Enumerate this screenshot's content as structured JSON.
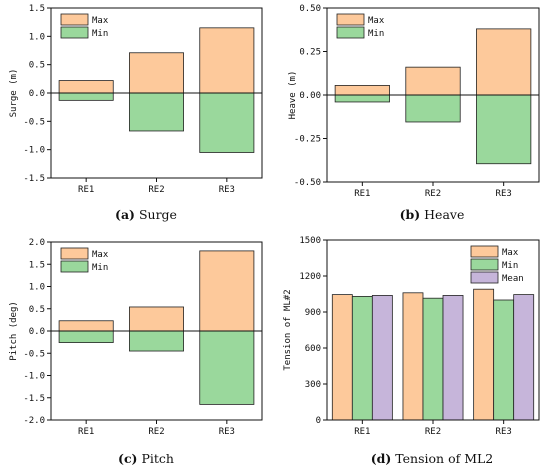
{
  "chart_data": [
    {
      "type": "bar",
      "caption_letter": "(a)",
      "caption_text": " Surge",
      "ylabel": "Surge (m)",
      "categories": [
        "RE1",
        "RE2",
        "RE3"
      ],
      "ylim": [
        -1.5,
        1.5
      ],
      "yticks": [
        -1.5,
        -1.0,
        -0.5,
        0.0,
        0.5,
        1.0,
        1.5
      ],
      "tick_labels": [
        "-1.5",
        "-1.0",
        "-0.5",
        "0.0",
        "0.5",
        "1.0",
        "1.5"
      ],
      "layout": "overlay",
      "legend_position": "top-left",
      "series": [
        {
          "name": "Max",
          "values": [
            0.22,
            0.71,
            1.15
          ],
          "color": "#FDC99B"
        },
        {
          "name": "Min",
          "values": [
            -0.13,
            -0.67,
            -1.05
          ],
          "color": "#9AD89C"
        }
      ]
    },
    {
      "type": "bar",
      "caption_letter": "(b)",
      "caption_text": " Heave",
      "ylabel": "Heave (m)",
      "categories": [
        "RE1",
        "RE2",
        "RE3"
      ],
      "ylim": [
        -0.5,
        0.5
      ],
      "yticks": [
        -0.5,
        -0.25,
        0.0,
        0.25,
        0.5
      ],
      "tick_labels": [
        "-0.50",
        "-0.25",
        "0.00",
        "0.25",
        "0.50"
      ],
      "layout": "overlay",
      "legend_position": "top-left",
      "series": [
        {
          "name": "Max",
          "values": [
            0.055,
            0.16,
            0.38
          ],
          "color": "#FDC99B"
        },
        {
          "name": "Min",
          "values": [
            -0.04,
            -0.155,
            -0.395
          ],
          "color": "#9AD89C"
        }
      ]
    },
    {
      "type": "bar",
      "caption_letter": "(c)",
      "caption_text": " Pitch",
      "ylabel": "Pitch (deg)",
      "categories": [
        "RE1",
        "RE2",
        "RE3"
      ],
      "ylim": [
        -2.0,
        2.0
      ],
      "yticks": [
        -2.0,
        -1.5,
        -1.0,
        -0.5,
        0.0,
        0.5,
        1.0,
        1.5,
        2.0
      ],
      "tick_labels": [
        "-2.0",
        "-1.5",
        "-1.0",
        "-0.5",
        "0.0",
        "0.5",
        "1.0",
        "1.5",
        "2.0"
      ],
      "layout": "overlay",
      "legend_position": "top-left",
      "series": [
        {
          "name": "Max",
          "values": [
            0.23,
            0.54,
            1.8
          ],
          "color": "#FDC99B"
        },
        {
          "name": "Min",
          "values": [
            -0.26,
            -0.45,
            -1.65
          ],
          "color": "#9AD89C"
        }
      ]
    },
    {
      "type": "bar",
      "caption_letter": "(d)",
      "caption_text": " Tension of ML2",
      "ylabel": "Tension of ML#2",
      "categories": [
        "RE1",
        "RE2",
        "RE3"
      ],
      "ylim": [
        0,
        1500
      ],
      "yticks": [
        0,
        300,
        600,
        900,
        1200,
        1500
      ],
      "tick_labels": [
        "0",
        "300",
        "600",
        "900",
        "1200",
        "1500"
      ],
      "layout": "grouped",
      "legend_position": "top-right",
      "series": [
        {
          "name": "Max",
          "values": [
            1045,
            1060,
            1090
          ],
          "color": "#FDC99B"
        },
        {
          "name": "Min",
          "values": [
            1030,
            1015,
            1000
          ],
          "color": "#9AD89C"
        },
        {
          "name": "Mean",
          "values": [
            1038,
            1038,
            1045
          ],
          "color": "#C6B5DA"
        }
      ]
    }
  ]
}
